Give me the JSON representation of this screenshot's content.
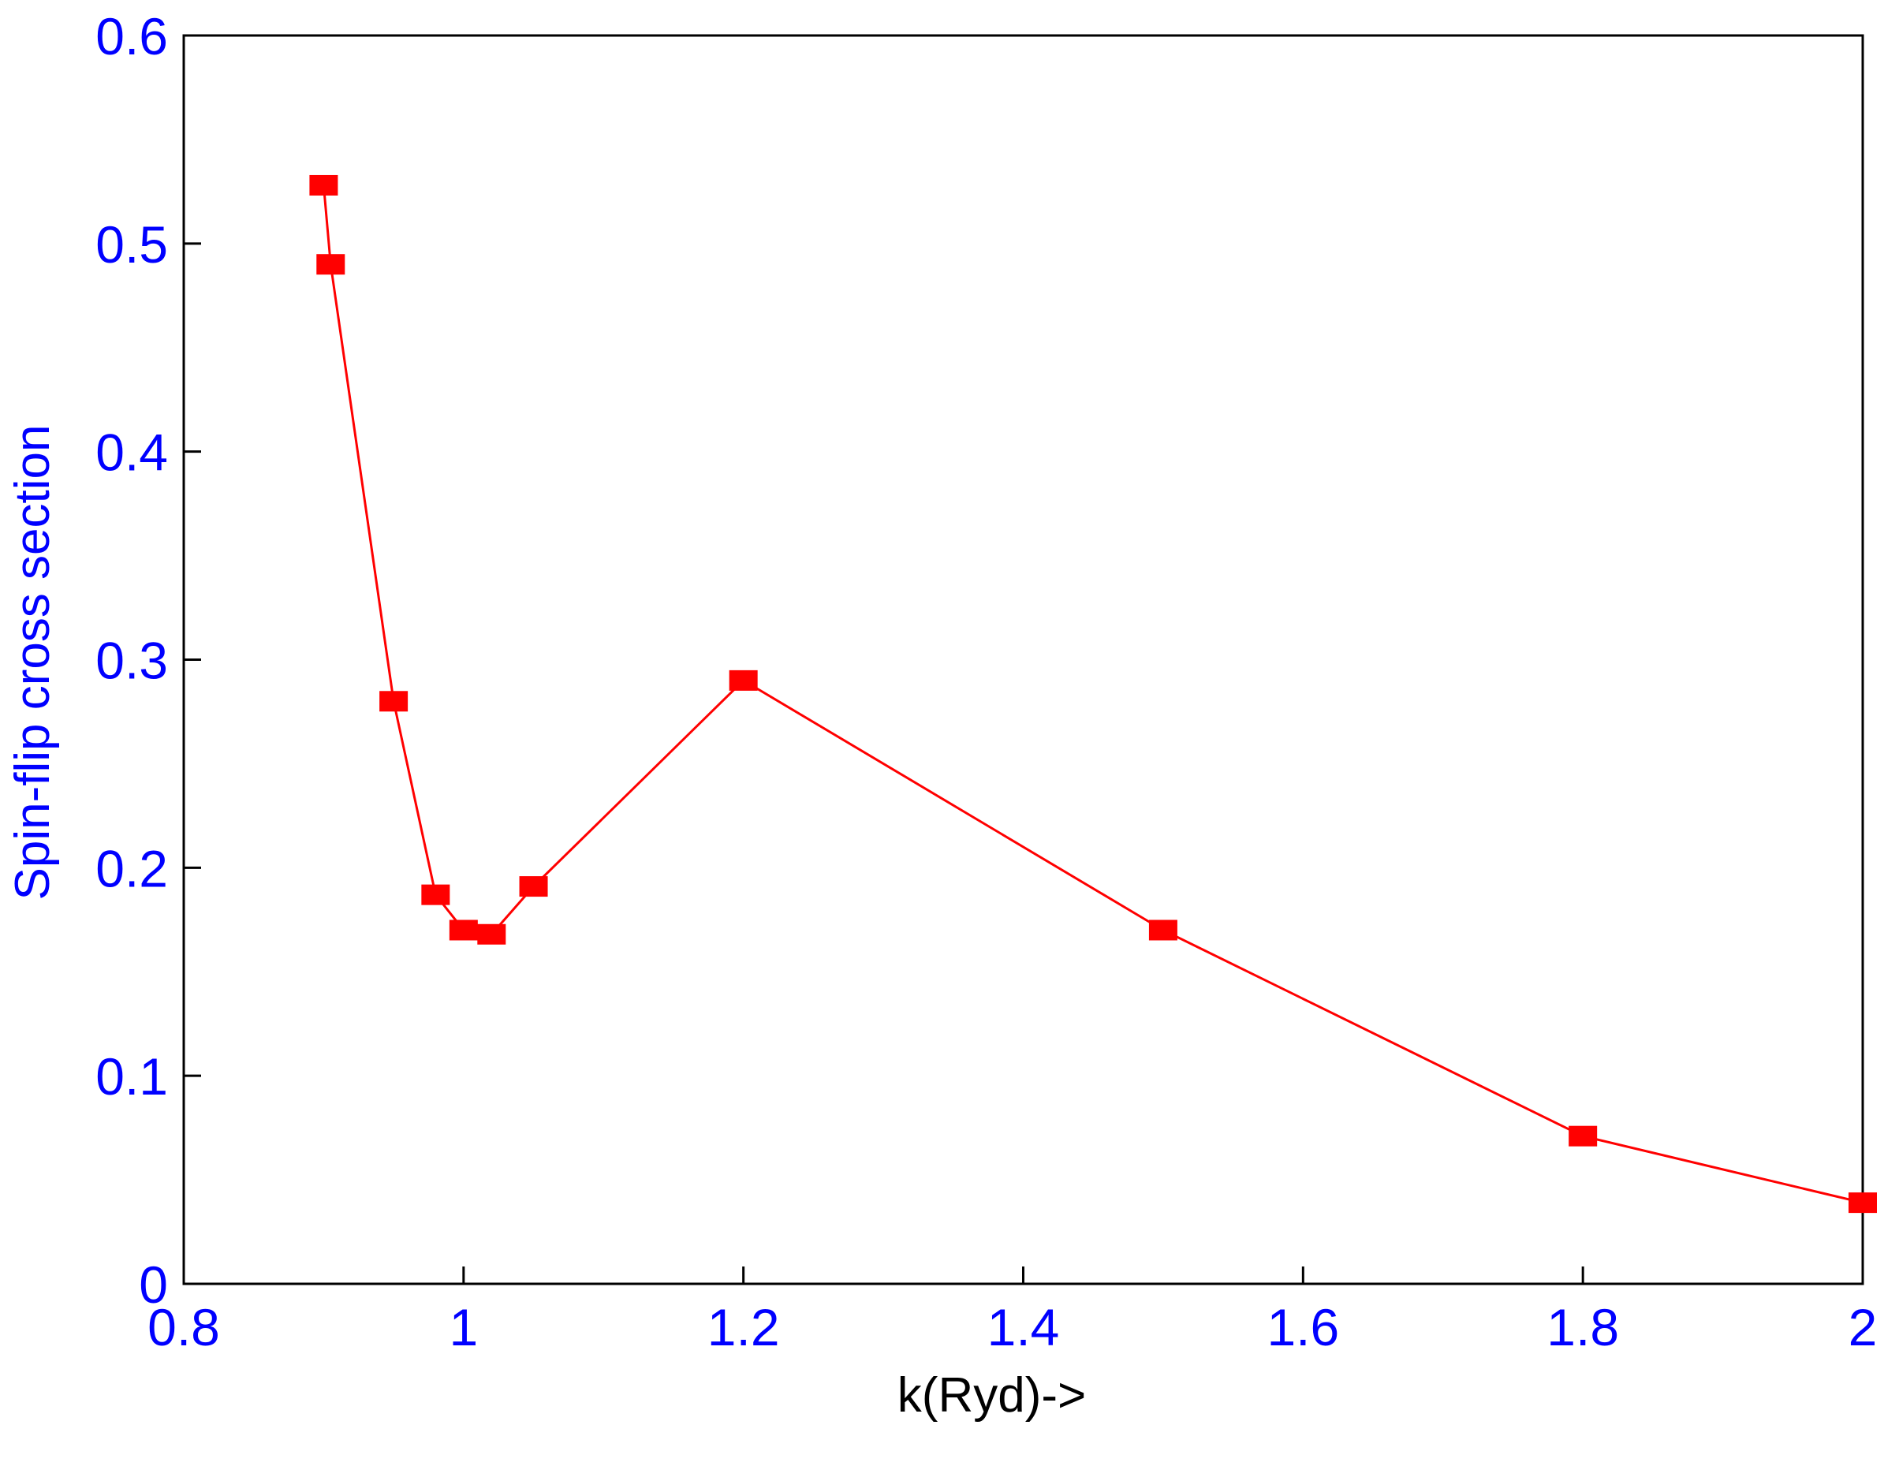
{
  "chart_data": {
    "type": "line",
    "title": "",
    "xlabel": "k(Ryd)->",
    "ylabel": "Spin-flip cross section",
    "xlim": [
      0.8,
      2.0
    ],
    "ylim": [
      0,
      0.6
    ],
    "x_ticks": [
      0.8,
      1.0,
      1.2,
      1.4,
      1.6,
      1.8,
      2.0
    ],
    "x_tick_labels": [
      "0.8",
      "1",
      "1.2",
      "1.4",
      "1.6",
      "1.8",
      "2"
    ],
    "y_ticks": [
      0,
      0.1,
      0.2,
      0.3,
      0.4,
      0.5,
      0.6
    ],
    "y_tick_labels": [
      "0",
      "0.1",
      "0.2",
      "0.3",
      "0.4",
      "0.5",
      "0.6"
    ],
    "grid": false,
    "legend": "none",
    "series": [
      {
        "x": [
          0.9,
          0.905,
          0.95,
          0.98,
          1.0,
          1.02,
          1.05,
          1.2,
          1.5,
          1.8,
          2.0
        ],
        "y": [
          0.528,
          0.49,
          0.28,
          0.187,
          0.17,
          0.168,
          0.191,
          0.29,
          0.17,
          0.071,
          0.039
        ],
        "color": "#ff0000",
        "marker": "square"
      }
    ],
    "colors": {
      "tick_labels": "#0000ff",
      "ylabel": "#0000ff",
      "xlabel": "#000000",
      "axes": "#000000",
      "series": "#ff0000"
    }
  }
}
